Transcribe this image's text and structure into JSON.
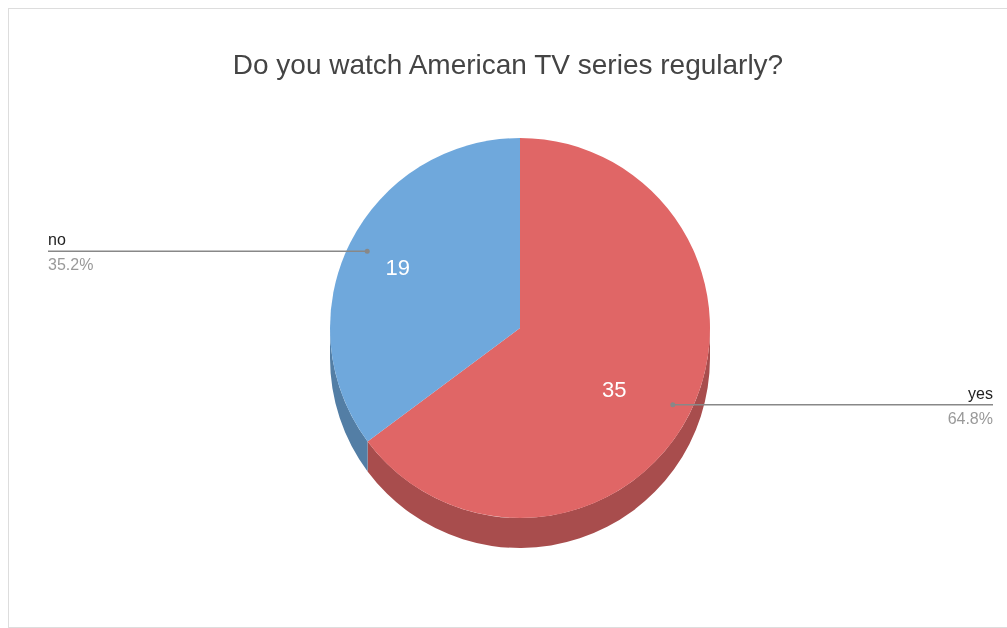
{
  "chart_data": {
    "type": "pie",
    "title": "Do you watch American TV series regularly?",
    "categories": [
      "yes",
      "no"
    ],
    "values": [
      35,
      19
    ],
    "colors": [
      "#e06666",
      "#6fa8dc"
    ],
    "data_labels": true,
    "annotations": [
      {
        "text": "64.8%",
        "x": "yes"
      },
      {
        "text": "35.2%",
        "x": "no"
      }
    ]
  }
}
